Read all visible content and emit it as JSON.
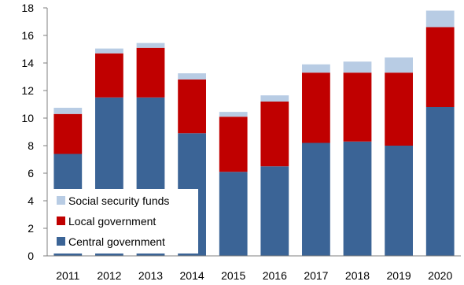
{
  "chart_data": {
    "type": "bar",
    "stacked": true,
    "categories": [
      "2011",
      "2012",
      "2013",
      "2014",
      "2015",
      "2016",
      "2017",
      "2018",
      "2019",
      "2020"
    ],
    "series": [
      {
        "name": "Central government",
        "color": "#3b6496",
        "values": [
          7.4,
          11.5,
          11.5,
          8.9,
          6.1,
          6.5,
          8.2,
          8.3,
          8.0,
          10.8
        ]
      },
      {
        "name": "Local government",
        "color": "#c00000",
        "values": [
          2.9,
          3.2,
          3.6,
          3.9,
          4.0,
          4.7,
          5.1,
          5.0,
          5.3,
          5.8
        ]
      },
      {
        "name": "Social security funds",
        "color": "#b8cce4",
        "values": [
          0.45,
          0.35,
          0.35,
          0.45,
          0.35,
          0.45,
          0.6,
          0.8,
          1.1,
          1.2
        ]
      }
    ],
    "yticks": [
      0,
      2,
      4,
      6,
      8,
      10,
      12,
      14,
      16,
      18
    ],
    "ylim": [
      0,
      18
    ],
    "grid": false,
    "legend_position": "bottom-left",
    "legend_order": [
      "Social security funds",
      "Local government",
      "Central government"
    ],
    "title": "",
    "xlabel": "",
    "ylabel": ""
  }
}
